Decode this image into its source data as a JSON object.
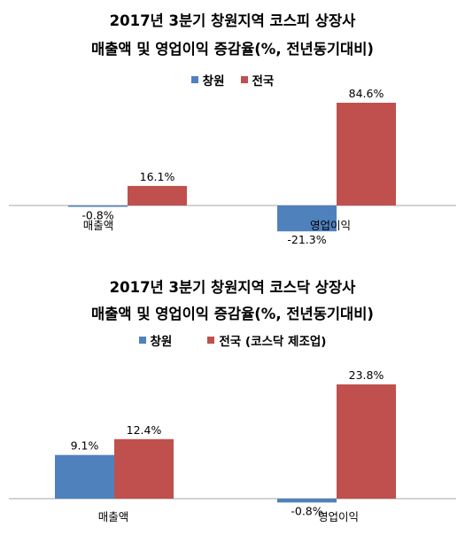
{
  "colors": {
    "changwon": "#4f81bd",
    "national": "#c0504d"
  },
  "chart_data": [
    {
      "type": "bar",
      "title": [
        "2017년 3분기 창원지역 코스피 상장사",
        "매출액 및 영업이익 증감율(%, 전년동기대비)"
      ],
      "categories": [
        "매출액",
        "영업이익"
      ],
      "series": [
        {
          "name": "창원",
          "values": [
            -0.8,
            -21.3
          ],
          "labels": [
            "-0.8%",
            "-21.3%"
          ]
        },
        {
          "name": "전국",
          "values": [
            16.1,
            84.6
          ],
          "labels": [
            "16.1%",
            "84.6%"
          ]
        }
      ],
      "legend": "top",
      "grid": false
    },
    {
      "type": "bar",
      "title": [
        "2017년 3분기 창원지역 코스닥 상장사",
        "매출액 및 영업이익 증감율(%, 전년동기대비)"
      ],
      "categories": [
        "매출액",
        "영업이익"
      ],
      "series": [
        {
          "name": "창원",
          "values": [
            9.1,
            -0.8
          ],
          "labels": [
            "9.1%",
            "-0.8%"
          ]
        },
        {
          "name": "전국 (코스닥 제조업)",
          "values": [
            12.4,
            23.8
          ],
          "labels": [
            "12.4%",
            "23.8%"
          ]
        }
      ],
      "legend": "top",
      "grid": false
    }
  ]
}
